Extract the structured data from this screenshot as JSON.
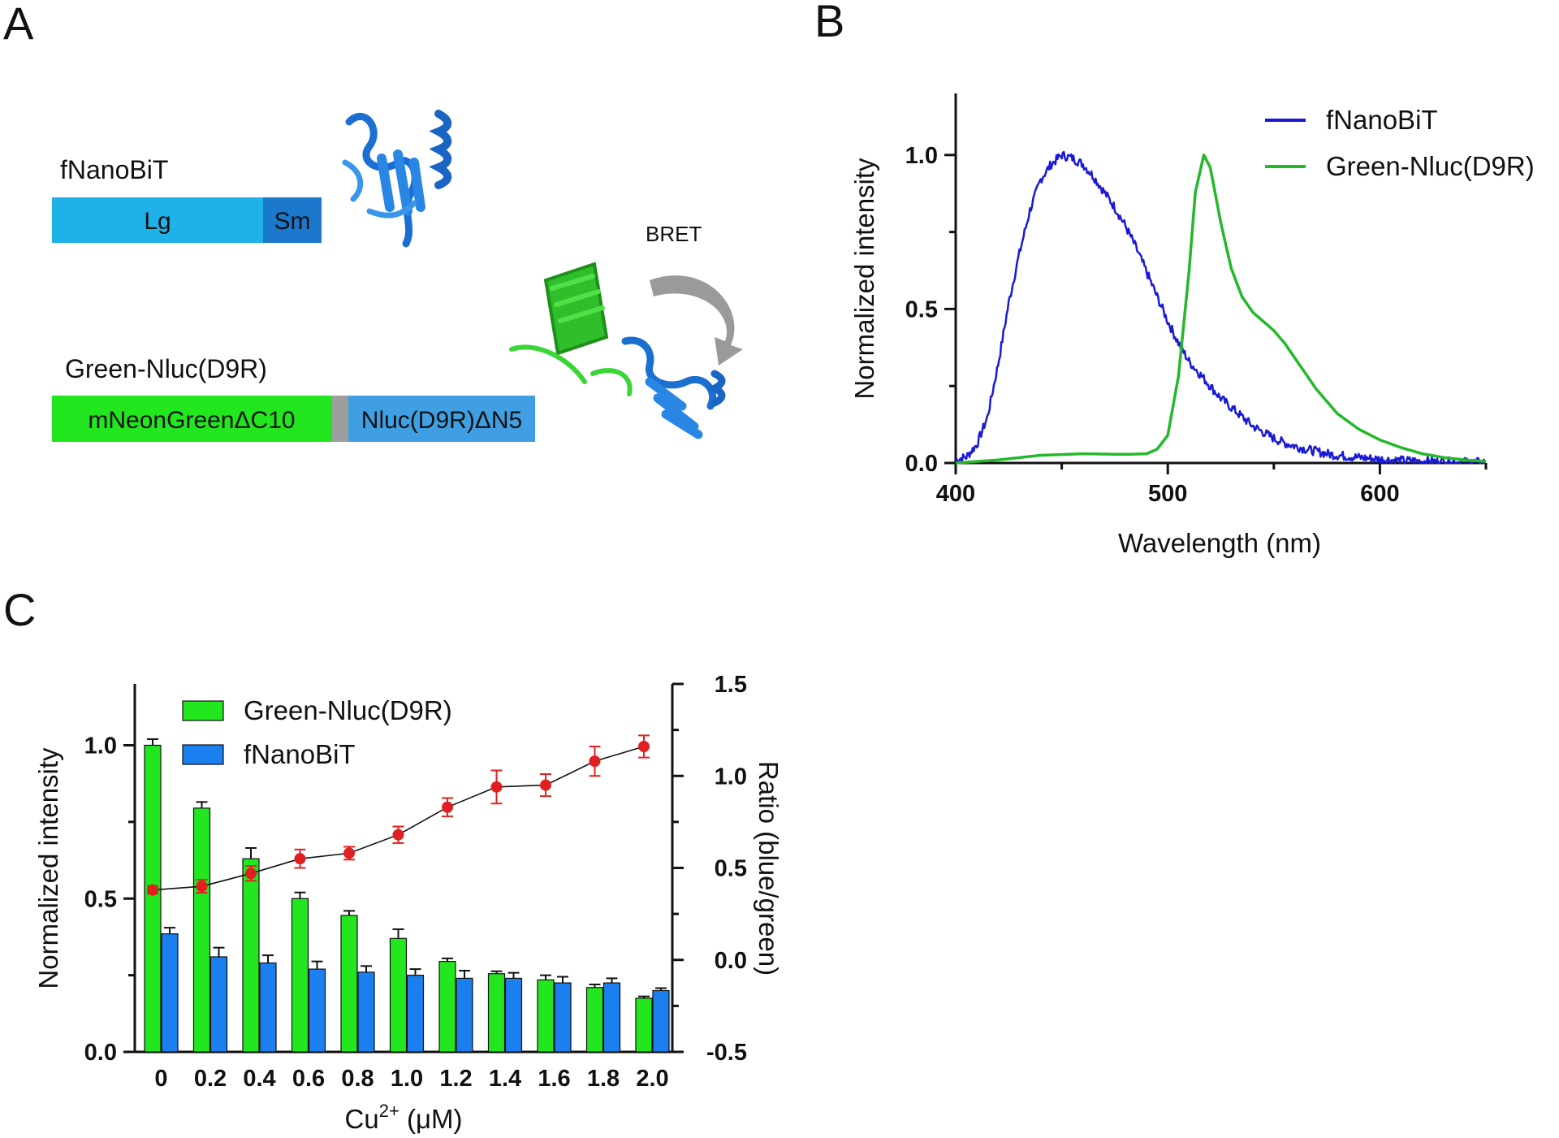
{
  "panels": {
    "a": "A",
    "b": "B",
    "c": "C"
  },
  "panel_a": {
    "construct1_name": "fNanoBiT",
    "construct1_seg1": "Lg",
    "construct1_seg2": "Sm",
    "construct2_name": "Green-Nluc(D9R)",
    "construct2_seg1": "mNeonGreenΔC10",
    "construct2_seg2": "Nluc(D9R)ΔN5",
    "bret_label": "BRET",
    "colors": {
      "lg": "#1fb2e8",
      "sm": "#1b78cc",
      "green": "#22e61e",
      "linker": "#9e9e9e",
      "nluc": "#3f9fe2"
    }
  },
  "chart_data": [
    {
      "type": "line",
      "panel": "B",
      "xlabel": "Wavelength (nm)",
      "ylabel": "Normalized intensity",
      "xlim": [
        400,
        650
      ],
      "ylim": [
        0,
        1.2
      ],
      "xticks": [
        "400",
        "500",
        "600"
      ],
      "yticks": [
        "0.0",
        "0.5",
        "1.0"
      ],
      "legend": "top-right",
      "series": [
        {
          "name": "fNanoBiT",
          "color": "#1a1ad6",
          "x": [
            400,
            405,
            410,
            415,
            420,
            425,
            430,
            435,
            440,
            445,
            450,
            455,
            460,
            465,
            470,
            475,
            480,
            485,
            490,
            495,
            500,
            505,
            510,
            515,
            520,
            525,
            530,
            535,
            540,
            545,
            550,
            555,
            560,
            565,
            570,
            575,
            580,
            590,
            600,
            610,
            620,
            630,
            640,
            650
          ],
          "y": [
            0.01,
            0.02,
            0.06,
            0.15,
            0.32,
            0.52,
            0.68,
            0.82,
            0.92,
            0.97,
            1.0,
            0.99,
            0.97,
            0.93,
            0.88,
            0.83,
            0.77,
            0.7,
            0.62,
            0.54,
            0.46,
            0.39,
            0.33,
            0.29,
            0.25,
            0.21,
            0.18,
            0.15,
            0.12,
            0.1,
            0.08,
            0.065,
            0.055,
            0.045,
            0.038,
            0.03,
            0.025,
            0.018,
            0.012,
            0.008,
            0.006,
            0.004,
            0.003,
            0.002
          ]
        },
        {
          "name": "Green-Nluc(D9R)",
          "color": "#24b82a",
          "x": [
            400,
            420,
            440,
            460,
            480,
            490,
            495,
            500,
            505,
            510,
            513,
            517,
            520,
            525,
            530,
            535,
            540,
            545,
            550,
            555,
            560,
            570,
            580,
            590,
            600,
            610,
            620,
            630,
            640,
            650
          ],
          "y": [
            0.0,
            0.01,
            0.025,
            0.03,
            0.028,
            0.03,
            0.045,
            0.09,
            0.28,
            0.62,
            0.88,
            1.0,
            0.96,
            0.78,
            0.63,
            0.54,
            0.49,
            0.46,
            0.43,
            0.39,
            0.34,
            0.24,
            0.16,
            0.11,
            0.075,
            0.05,
            0.03,
            0.018,
            0.01,
            0.005
          ]
        }
      ]
    },
    {
      "type": "bar",
      "panel": "C",
      "xlabel_main": "Cu",
      "xlabel_sup": "2+",
      "xlabel_unit": " (μM)",
      "ylabel": "Normalized intensity",
      "y2label": "Ratio (blue/green)",
      "categories": [
        "0",
        "0.2",
        "0.4",
        "0.6",
        "0.8",
        "1.0",
        "1.2",
        "1.4",
        "1.6",
        "1.8",
        "2.0"
      ],
      "ylim": [
        0,
        1.2
      ],
      "yticks": [
        "0.0",
        "0.5",
        "1.0"
      ],
      "y2lim": [
        -0.5,
        1.5
      ],
      "y2ticks": [
        "-0.5",
        "0.0",
        "0.5",
        "1.0",
        "1.5"
      ],
      "legend": "top-left",
      "series": [
        {
          "name": "Green-Nluc(D9R)",
          "color": "#22e61e",
          "values": [
            1.0,
            0.795,
            0.63,
            0.5,
            0.445,
            0.37,
            0.295,
            0.255,
            0.235,
            0.21,
            0.175
          ],
          "errors": [
            0.02,
            0.02,
            0.035,
            0.02,
            0.015,
            0.03,
            0.01,
            0.008,
            0.015,
            0.01,
            0.006
          ]
        },
        {
          "name": "fNanoBiT",
          "color": "#1b7ff0",
          "values": [
            0.385,
            0.31,
            0.29,
            0.27,
            0.26,
            0.25,
            0.24,
            0.24,
            0.225,
            0.225,
            0.2
          ],
          "errors": [
            0.02,
            0.03,
            0.025,
            0.025,
            0.02,
            0.02,
            0.025,
            0.018,
            0.02,
            0.015,
            0.008
          ]
        }
      ],
      "ratio": {
        "name": "Ratio (blue/green)",
        "color": "#e02020",
        "values": [
          0.38,
          0.4,
          0.47,
          0.55,
          0.58,
          0.68,
          0.83,
          0.94,
          0.95,
          1.08,
          1.16
        ],
        "errors": [
          0.02,
          0.035,
          0.04,
          0.05,
          0.035,
          0.045,
          0.05,
          0.09,
          0.06,
          0.08,
          0.06
        ]
      }
    }
  ]
}
